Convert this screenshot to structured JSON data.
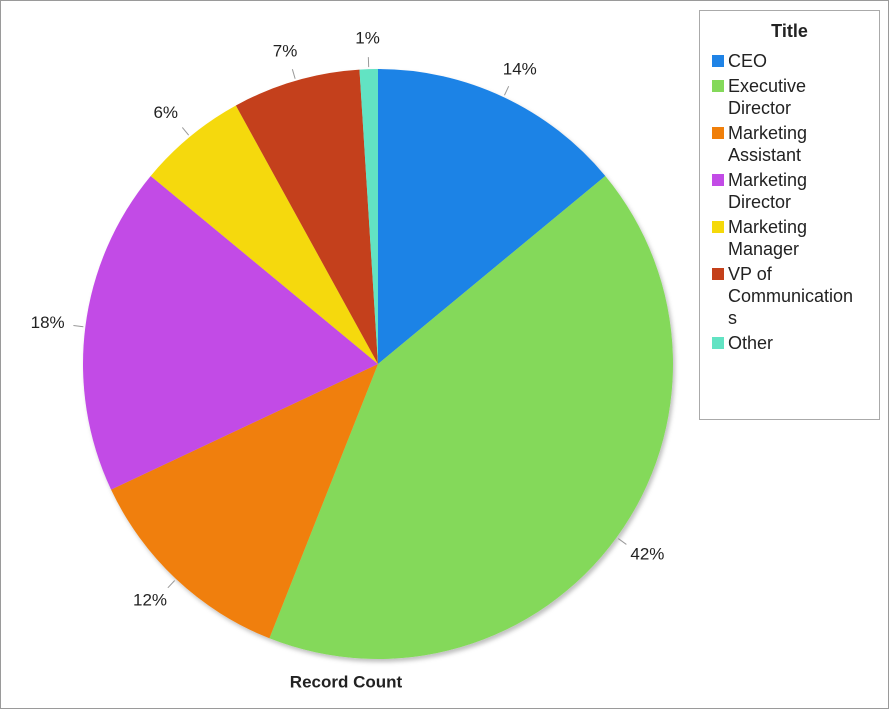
{
  "chart_data": {
    "type": "pie",
    "legend_title": "Title",
    "xlabel": "Record Count",
    "categories": [
      "CEO",
      "Executive Director",
      "Marketing Assistant",
      "Marketing Director",
      "Marketing Manager",
      "VP of Communications",
      "Other"
    ],
    "values": [
      14,
      42,
      12,
      18,
      6,
      7,
      1
    ],
    "value_labels": [
      "14%",
      "42%",
      "12%",
      "18%",
      "6%",
      "7%",
      "1%"
    ],
    "colors": [
      "#1f83e6",
      "#84d95a",
      "#f07f0a",
      "#c24be6",
      "#f5d90a",
      "#c4401a",
      "#62e3c3"
    ],
    "legend": "right"
  }
}
